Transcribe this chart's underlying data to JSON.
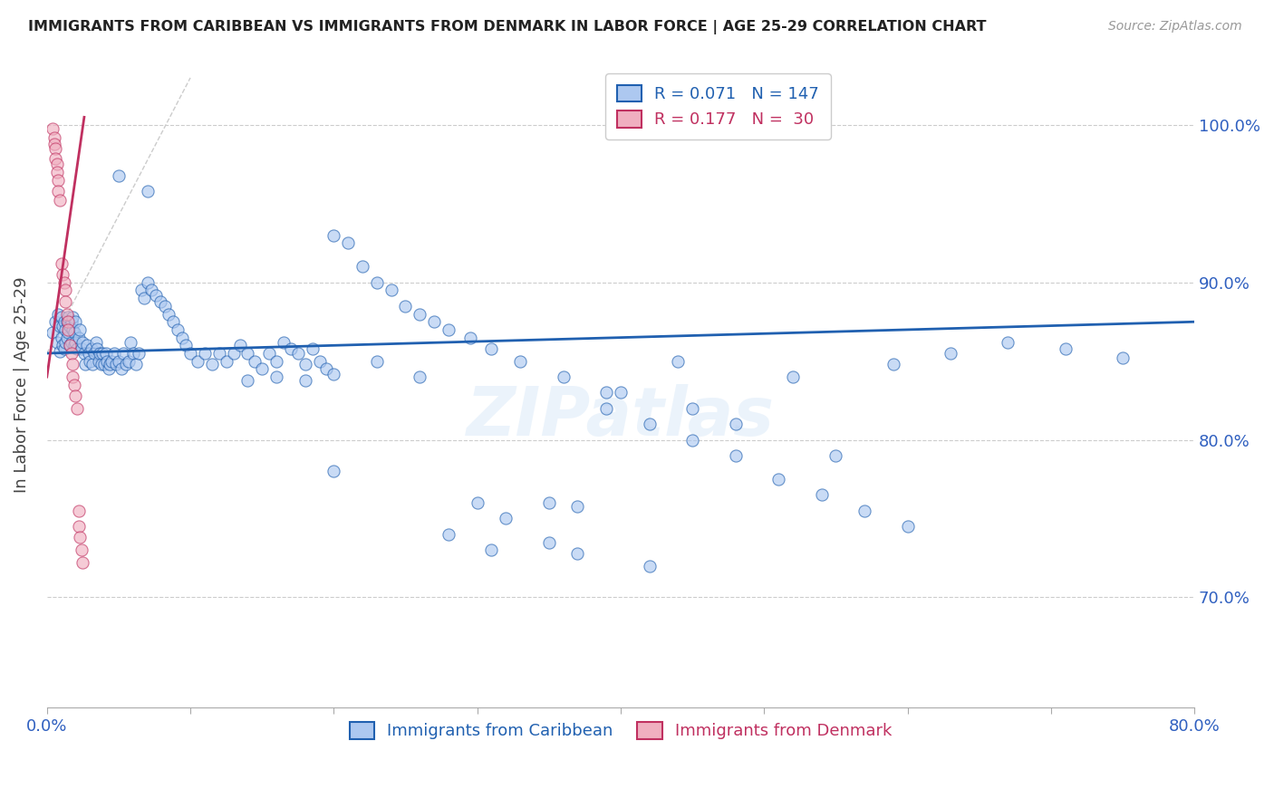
{
  "title": "IMMIGRANTS FROM CARIBBEAN VS IMMIGRANTS FROM DENMARK IN LABOR FORCE | AGE 25-29 CORRELATION CHART",
  "source": "Source: ZipAtlas.com",
  "ylabel": "In Labor Force | Age 25-29",
  "legend1_label": "Immigrants from Caribbean",
  "legend2_label": "Immigrants from Denmark",
  "R_caribbean": 0.071,
  "N_caribbean": 147,
  "R_denmark": 0.177,
  "N_denmark": 30,
  "color_caribbean": "#adc8f0",
  "color_denmark": "#f0afc0",
  "line_color_caribbean": "#2060b0",
  "line_color_denmark": "#c03060",
  "scatter_alpha": 0.65,
  "scatter_size": 90,
  "background_color": "#ffffff",
  "grid_color": "#cccccc",
  "title_color": "#222222",
  "axis_label_color": "#3060c0",
  "xlim": [
    0.0,
    0.8
  ],
  "ylim": [
    0.63,
    1.04
  ],
  "caribbean_x": [
    0.004,
    0.006,
    0.007,
    0.008,
    0.009,
    0.009,
    0.01,
    0.01,
    0.011,
    0.011,
    0.012,
    0.012,
    0.013,
    0.013,
    0.014,
    0.014,
    0.015,
    0.015,
    0.016,
    0.016,
    0.017,
    0.017,
    0.018,
    0.018,
    0.019,
    0.019,
    0.02,
    0.02,
    0.021,
    0.022,
    0.023,
    0.024,
    0.025,
    0.026,
    0.027,
    0.028,
    0.029,
    0.03,
    0.031,
    0.032,
    0.033,
    0.034,
    0.035,
    0.036,
    0.037,
    0.038,
    0.039,
    0.04,
    0.041,
    0.042,
    0.043,
    0.044,
    0.045,
    0.047,
    0.048,
    0.05,
    0.052,
    0.053,
    0.055,
    0.057,
    0.058,
    0.06,
    0.062,
    0.064,
    0.066,
    0.068,
    0.07,
    0.073,
    0.076,
    0.079,
    0.082,
    0.085,
    0.088,
    0.091,
    0.094,
    0.097,
    0.1,
    0.105,
    0.11,
    0.115,
    0.12,
    0.125,
    0.13,
    0.135,
    0.14,
    0.145,
    0.15,
    0.155,
    0.16,
    0.165,
    0.17,
    0.175,
    0.18,
    0.185,
    0.19,
    0.195,
    0.2,
    0.21,
    0.22,
    0.23,
    0.24,
    0.25,
    0.26,
    0.27,
    0.28,
    0.295,
    0.31,
    0.33,
    0.35,
    0.37,
    0.39,
    0.42,
    0.45,
    0.48,
    0.51,
    0.54,
    0.57,
    0.6,
    0.35,
    0.37,
    0.28,
    0.31,
    0.42,
    0.2,
    0.23,
    0.26,
    0.39,
    0.45,
    0.48,
    0.52,
    0.14,
    0.16,
    0.18,
    0.2,
    0.44,
    0.3,
    0.32,
    0.36,
    0.4,
    0.55,
    0.59,
    0.63,
    0.67,
    0.71,
    0.75,
    0.05,
    0.07
  ],
  "caribbean_y": [
    0.868,
    0.875,
    0.862,
    0.88,
    0.856,
    0.872,
    0.865,
    0.878,
    0.86,
    0.872,
    0.858,
    0.875,
    0.87,
    0.862,
    0.875,
    0.865,
    0.878,
    0.868,
    0.872,
    0.86,
    0.875,
    0.862,
    0.87,
    0.878,
    0.86,
    0.868,
    0.875,
    0.862,
    0.858,
    0.865,
    0.87,
    0.858,
    0.862,
    0.855,
    0.848,
    0.86,
    0.855,
    0.85,
    0.858,
    0.848,
    0.855,
    0.862,
    0.858,
    0.85,
    0.855,
    0.848,
    0.855,
    0.848,
    0.855,
    0.85,
    0.845,
    0.848,
    0.85,
    0.855,
    0.848,
    0.85,
    0.845,
    0.855,
    0.848,
    0.85,
    0.862,
    0.855,
    0.848,
    0.855,
    0.895,
    0.89,
    0.9,
    0.895,
    0.892,
    0.888,
    0.885,
    0.88,
    0.875,
    0.87,
    0.865,
    0.86,
    0.855,
    0.85,
    0.855,
    0.848,
    0.855,
    0.85,
    0.855,
    0.86,
    0.855,
    0.85,
    0.845,
    0.855,
    0.85,
    0.862,
    0.858,
    0.855,
    0.848,
    0.858,
    0.85,
    0.845,
    0.93,
    0.925,
    0.91,
    0.9,
    0.895,
    0.885,
    0.88,
    0.875,
    0.87,
    0.865,
    0.858,
    0.85,
    0.76,
    0.758,
    0.82,
    0.81,
    0.8,
    0.79,
    0.775,
    0.765,
    0.755,
    0.745,
    0.735,
    0.728,
    0.74,
    0.73,
    0.72,
    0.78,
    0.85,
    0.84,
    0.83,
    0.82,
    0.81,
    0.84,
    0.838,
    0.84,
    0.838,
    0.842,
    0.85,
    0.76,
    0.75,
    0.84,
    0.83,
    0.79,
    0.848,
    0.855,
    0.862,
    0.858,
    0.852,
    0.968,
    0.958
  ],
  "denmark_x": [
    0.004,
    0.005,
    0.005,
    0.006,
    0.006,
    0.007,
    0.007,
    0.008,
    0.008,
    0.009,
    0.01,
    0.011,
    0.012,
    0.013,
    0.013,
    0.014,
    0.015,
    0.015,
    0.016,
    0.017,
    0.018,
    0.018,
    0.019,
    0.02,
    0.021,
    0.022,
    0.022,
    0.023,
    0.024,
    0.025
  ],
  "denmark_y": [
    0.998,
    0.992,
    0.988,
    0.985,
    0.979,
    0.975,
    0.97,
    0.965,
    0.958,
    0.952,
    0.912,
    0.905,
    0.9,
    0.895,
    0.888,
    0.88,
    0.875,
    0.87,
    0.86,
    0.855,
    0.848,
    0.84,
    0.835,
    0.828,
    0.82,
    0.755,
    0.745,
    0.738,
    0.73,
    0.722
  ]
}
